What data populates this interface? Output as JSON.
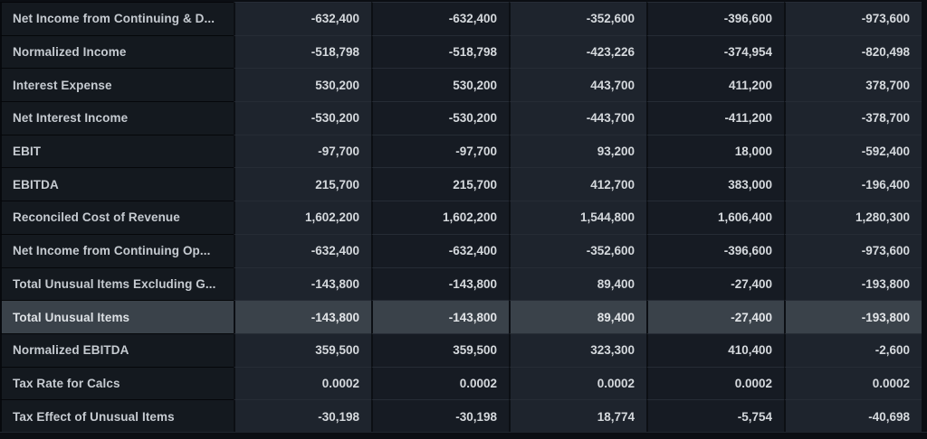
{
  "theme": {
    "page_bg": "#0b0e13",
    "label_col_bg": "#14191f",
    "num_col_light_bg": "#1e242d",
    "num_col_dark_bg": "#161b23",
    "highlight_row_bg": "#3a424a",
    "row_border": "#262c35",
    "label_text": "#c6cbd1",
    "value_text": "#d5d9dd"
  },
  "table": {
    "numeric_column_count": 5,
    "rows": [
      {
        "label": "Net Income from Continuing & D...",
        "values": [
          "-632,400",
          "-632,400",
          "-352,600",
          "-396,600",
          "-973,600"
        ],
        "highlighted": false
      },
      {
        "label": "Normalized Income",
        "values": [
          "-518,798",
          "-518,798",
          "-423,226",
          "-374,954",
          "-820,498"
        ],
        "highlighted": false
      },
      {
        "label": "Interest Expense",
        "values": [
          "530,200",
          "530,200",
          "443,700",
          "411,200",
          "378,700"
        ],
        "highlighted": false
      },
      {
        "label": "Net Interest Income",
        "values": [
          "-530,200",
          "-530,200",
          "-443,700",
          "-411,200",
          "-378,700"
        ],
        "highlighted": false
      },
      {
        "label": "EBIT",
        "values": [
          "-97,700",
          "-97,700",
          "93,200",
          "18,000",
          "-592,400"
        ],
        "highlighted": false
      },
      {
        "label": "EBITDA",
        "values": [
          "215,700",
          "215,700",
          "412,700",
          "383,000",
          "-196,400"
        ],
        "highlighted": false
      },
      {
        "label": "Reconciled Cost of Revenue",
        "values": [
          "1,602,200",
          "1,602,200",
          "1,544,800",
          "1,606,400",
          "1,280,300"
        ],
        "highlighted": false
      },
      {
        "label": "Net Income from Continuing Op...",
        "values": [
          "-632,400",
          "-632,400",
          "-352,600",
          "-396,600",
          "-973,600"
        ],
        "highlighted": false
      },
      {
        "label": "Total Unusual Items Excluding G...",
        "values": [
          "-143,800",
          "-143,800",
          "89,400",
          "-27,400",
          "-193,800"
        ],
        "highlighted": false
      },
      {
        "label": "Total Unusual Items",
        "values": [
          "-143,800",
          "-143,800",
          "89,400",
          "-27,400",
          "-193,800"
        ],
        "highlighted": true
      },
      {
        "label": "Normalized EBITDA",
        "values": [
          "359,500",
          "359,500",
          "323,300",
          "410,400",
          "-2,600"
        ],
        "highlighted": false
      },
      {
        "label": "Tax Rate for Calcs",
        "values": [
          "0.0002",
          "0.0002",
          "0.0002",
          "0.0002",
          "0.0002"
        ],
        "highlighted": false
      },
      {
        "label": "Tax Effect of Unusual Items",
        "values": [
          "-30,198",
          "-30,198",
          "18,774",
          "-5,754",
          "-40,698"
        ],
        "highlighted": false
      }
    ]
  }
}
